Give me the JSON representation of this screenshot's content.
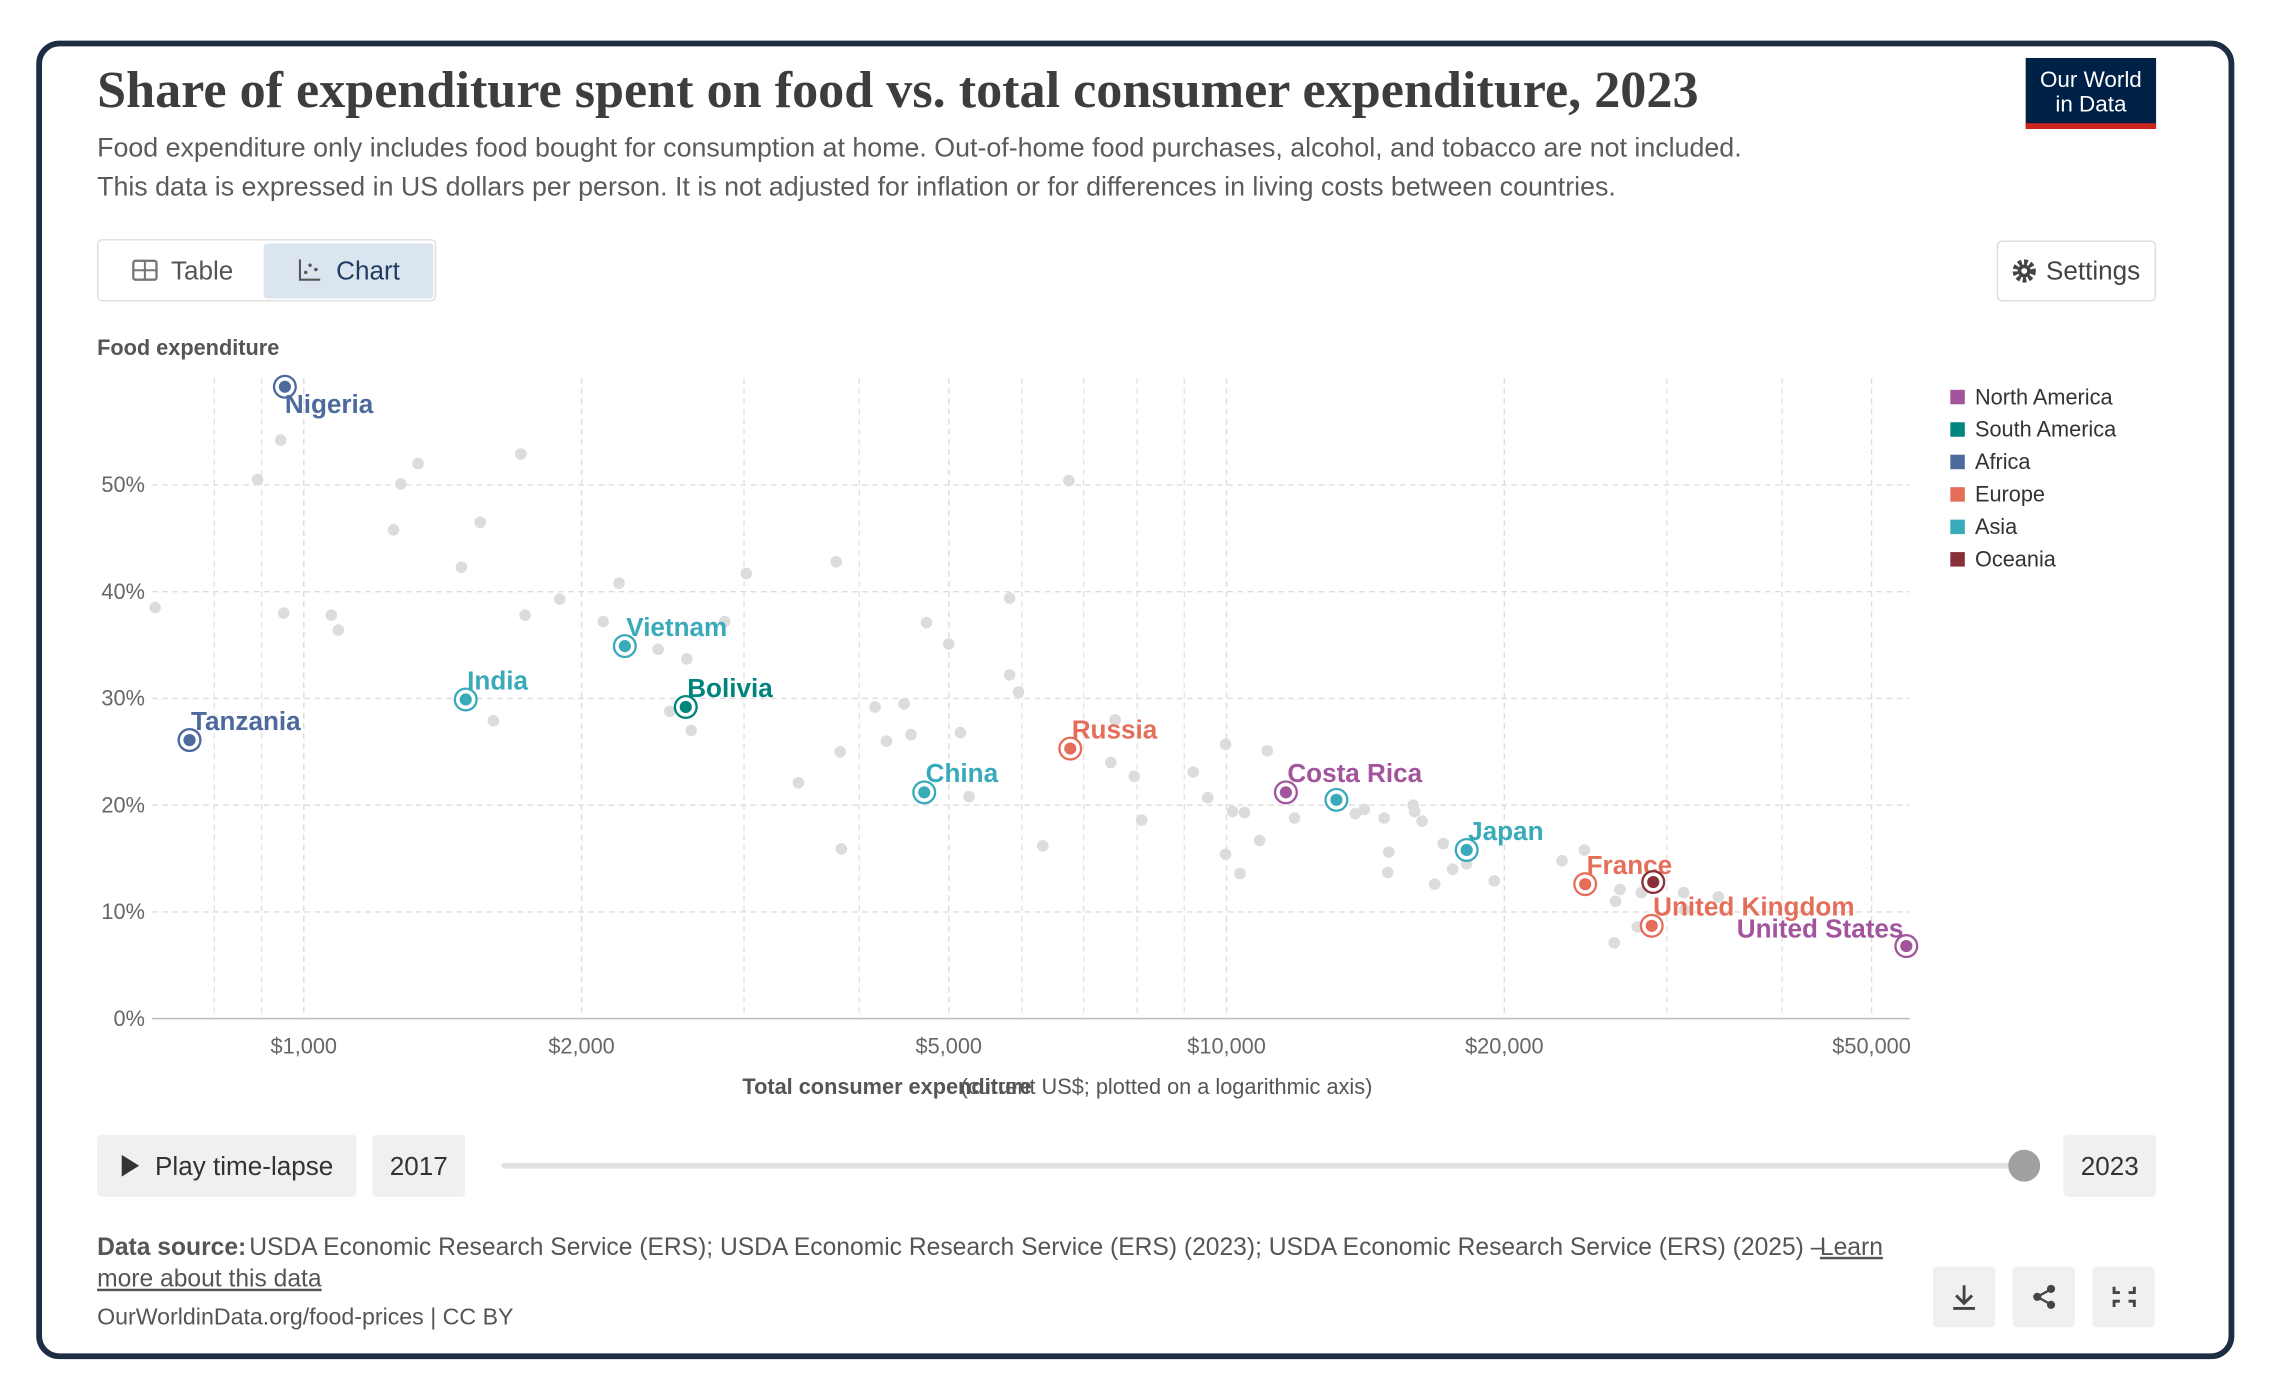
{
  "chart_data": {
    "type": "scatter",
    "title": "Share of expenditure spent on food vs. total consumer expenditure, 2023",
    "subtitle": [
      "Food expenditure only includes food bought for consumption at home. Out-of-home food purchases, alcohol, and tobacco are not included.",
      "This data is expressed in US dollars per person. It is not adjusted for inflation or for differences in living costs between countries."
    ],
    "ylabel": "Food expenditure",
    "xlabel": "Total consumer expenditure",
    "xlabel_note": "(current US$; plotted on a logarithmic axis)",
    "xscale": "log",
    "grid": true,
    "legend": "right",
    "xlim": [
      685,
      55000
    ],
    "ylim": [
      0,
      60
    ],
    "xticks": [
      {
        "value": 1000,
        "label": "$1,000"
      },
      {
        "value": 2000,
        "label": "$2,000"
      },
      {
        "value": 5000,
        "label": "$5,000"
      },
      {
        "value": 10000,
        "label": "$10,000"
      },
      {
        "value": 20000,
        "label": "$20,000"
      },
      {
        "value": 50000,
        "label": "$50,000"
      }
    ],
    "xgrid_minor": [
      800,
      900,
      3000,
      4000,
      6000,
      7000,
      8000,
      9000,
      30000,
      40000
    ],
    "yticks": [
      {
        "value": 0,
        "label": "0%"
      },
      {
        "value": 10,
        "label": "10%"
      },
      {
        "value": 20,
        "label": "20%"
      },
      {
        "value": 30,
        "label": "30%"
      },
      {
        "value": 40,
        "label": "40%"
      },
      {
        "value": 50,
        "label": "50%"
      }
    ],
    "series": [
      {
        "name": "North America",
        "color": "#a2559c",
        "x": [
          11596,
          54530
        ],
        "y": [
          21.2,
          6.8
        ],
        "labels": [
          "Costa Rica",
          "United States"
        ]
      },
      {
        "name": "South America",
        "color": "#00847e",
        "x": [
          2594
        ],
        "y": [
          29.2
        ],
        "labels": [
          "Bolivia"
        ]
      },
      {
        "name": "Africa",
        "color": "#4c6a9c",
        "x": [
          954,
          752
        ],
        "y": [
          59.2,
          26.1
        ],
        "labels": [
          "Nigeria",
          "Tanzania"
        ]
      },
      {
        "name": "Europe",
        "color": "#e56e5a",
        "x": [
          6771,
          24470,
          28890
        ],
        "y": [
          25.3,
          12.6,
          8.7
        ],
        "labels": [
          "Russia",
          "France",
          "United Kingdom"
        ]
      },
      {
        "name": "Asia",
        "color": "#38aaba",
        "x": [
          1498,
          2228,
          4703,
          13154,
          18206
        ],
        "y": [
          29.9,
          34.9,
          21.2,
          20.5,
          15.8
        ],
        "labels": [
          "India",
          "Vietnam",
          "China",
          null,
          "Japan"
        ]
      },
      {
        "name": "Oceania",
        "color": "#883039",
        "x": [
          29000
        ],
        "y": [
          12.8
        ],
        "labels": [
          null
        ]
      }
    ],
    "background": {
      "color": "#dcdcdc",
      "x": [
        690,
        944,
        891,
        951,
        1071,
        1090,
        1274,
        1330,
        1251,
        1482,
        1553,
        1605,
        1719,
        1737,
        1894,
        2111,
        2196,
        2421,
        2492,
        2601,
        2629,
        2858,
        3017,
        3436,
        3775,
        3813,
        3825,
        4160,
        4280,
        4472,
        4550,
        4730,
        5000,
        5147,
        5260,
        5820,
        5820,
        5950,
        6322,
        6748,
        7492,
        7573,
        7942,
        8090,
        9203,
        9540,
        9975,
        9975,
        10150,
        10340,
        10460,
        10860,
        11070,
        11850,
        13790,
        14100,
        14820,
        14990,
        14950,
        15930,
        15990,
        16290,
        16810,
        17170,
        17580,
        18200,
        19500,
        23100,
        24420,
        26400,
        26690,
        26310,
        27870,
        28150,
        31280,
        34120,
        31370
      ],
      "y": [
        38.5,
        54.2,
        50.5,
        38.0,
        37.8,
        36.4,
        50.1,
        52.0,
        45.8,
        42.3,
        46.5,
        27.9,
        52.9,
        37.8,
        39.3,
        37.2,
        40.8,
        34.6,
        28.8,
        33.7,
        27.0,
        37.2,
        41.7,
        22.1,
        42.8,
        25.0,
        15.9,
        29.2,
        26.0,
        29.5,
        26.6,
        37.1,
        35.1,
        26.8,
        20.8,
        39.4,
        32.2,
        30.6,
        16.2,
        50.4,
        24.0,
        28.0,
        22.7,
        18.6,
        23.1,
        20.7,
        25.7,
        15.4,
        19.4,
        13.6,
        19.3,
        16.7,
        25.1,
        18.8,
        19.2,
        19.6,
        18.8,
        15.6,
        13.7,
        20.0,
        19.4,
        18.5,
        12.6,
        16.4,
        14.0,
        14.5,
        12.9,
        14.8,
        15.8,
        11.0,
        12.1,
        7.1,
        8.6,
        11.8,
        11.8,
        11.4,
        10.2
      ]
    },
    "timeline": {
      "start": 2017,
      "end": 2023
    }
  },
  "ui": {
    "logo": [
      "Our World",
      "in Data"
    ],
    "tabs": [
      "Table",
      "Chart"
    ],
    "settings": "Settings",
    "play": "Play time-lapse",
    "source_label": "Data source:",
    "source_text": "USDA Economic Research Service (ERS); USDA Economic Research Service (ERS) (2023); USDA Economic Research Service (ERS) (2025) –",
    "source_link": [
      "Learn",
      "more about this data"
    ],
    "footer": "OurWorldinData.org/food-prices | CC BY"
  }
}
